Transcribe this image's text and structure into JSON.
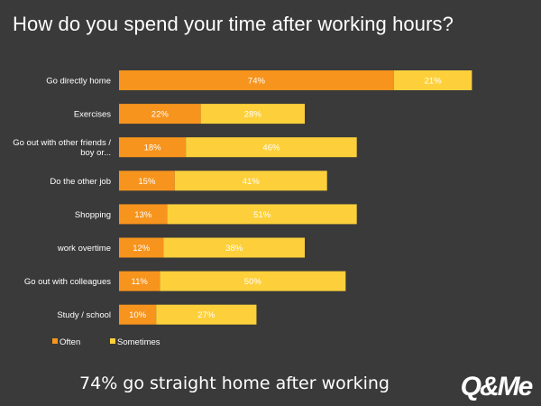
{
  "title": "How do you spend your time after working hours?",
  "caption": "74% go straight home after working",
  "logo_text": "Q&Me",
  "colors": {
    "often": "#f7941d",
    "sometimes": "#fdd03b",
    "background": "#3a3a3a",
    "text": "#ffffff"
  },
  "chart_data": {
    "type": "bar",
    "orientation": "horizontal",
    "stacked": true,
    "categories": [
      "Go directly home",
      "Exercises",
      "Go out with other friends / boy or...",
      "Do the other job",
      "Shopping",
      "work overtime",
      "Go out with colleagues",
      "Study / school"
    ],
    "category_lines": [
      [
        "Go directly home"
      ],
      [
        "Exercises"
      ],
      [
        "Go out with other friends /",
        "boy or..."
      ],
      [
        "Do the other job"
      ],
      [
        "Shopping"
      ],
      [
        "work overtime"
      ],
      [
        "Go out with colleagues"
      ],
      [
        "Study / school"
      ]
    ],
    "series": [
      {
        "name": "Often",
        "values": [
          74,
          22,
          18,
          15,
          13,
          12,
          11,
          10
        ],
        "labels": [
          "74%",
          "22%",
          "18%",
          "15%",
          "13%",
          "12%",
          "11%",
          "10%"
        ]
      },
      {
        "name": "Sometimes",
        "values": [
          21,
          28,
          46,
          41,
          51,
          38,
          50,
          27
        ],
        "labels": [
          "21%",
          "28%",
          "46%",
          "41%",
          "51%",
          "38%",
          "50%",
          "27%"
        ]
      }
    ],
    "xlim": [
      0,
      100
    ],
    "legend": "bottom-left",
    "grid": false
  }
}
